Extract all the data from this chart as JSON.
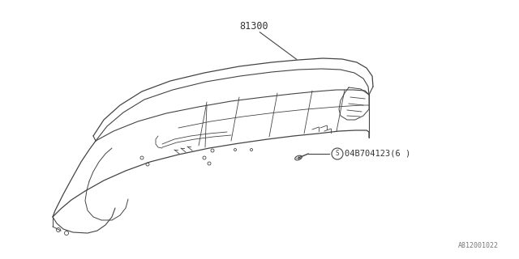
{
  "background_color": "#ffffff",
  "line_color": "#444444",
  "text_color": "#333333",
  "part_label": "81300",
  "fastener_label": "04B704123(6 )",
  "ref_number": "A812001022",
  "fig_width": 6.4,
  "fig_height": 3.2,
  "dpi": 100
}
